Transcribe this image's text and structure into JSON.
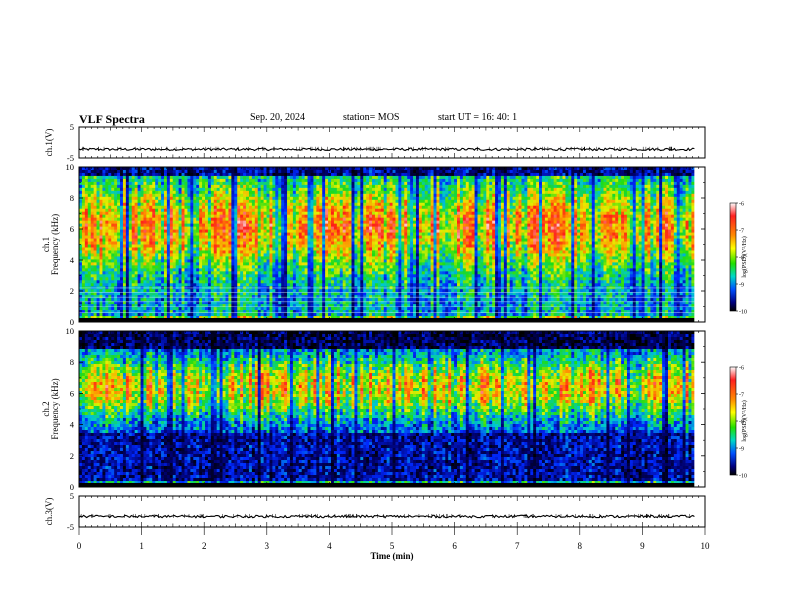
{
  "header": {
    "title": "VLF Spectra",
    "date": "Sep. 20, 2024",
    "station": "station= MOS",
    "start": "start  UT  =   16: 40: 1"
  },
  "chart_data": [
    {
      "type": "line",
      "name_panel": "ch1-waveform",
      "ylabel": "ch.1(V)",
      "ylim": [
        -5,
        5
      ],
      "yticks": [
        "5",
        "-5"
      ],
      "xlim": [
        0,
        10
      ],
      "level": -2.2
    },
    {
      "type": "heatmap",
      "name_panel": "ch1-spectrogram",
      "ylabel_top": "ch.1",
      "ylabel": "Frequency (kHz)",
      "ylim": [
        0,
        10
      ],
      "yticks": [
        "0",
        "2",
        "4",
        "6",
        "8",
        "10"
      ],
      "xlim": [
        0,
        9.83
      ],
      "colorbar": {
        "label": "log(PSD)(V²/Hz)",
        "range": [
          -10,
          -6
        ],
        "ticks": [
          "-6",
          "-7",
          "-8",
          "-9",
          "-10"
        ]
      }
    },
    {
      "type": "heatmap",
      "name_panel": "ch2-spectrogram",
      "ylabel_top": "ch.2",
      "ylabel": "Frequency (kHz)",
      "ylim": [
        0,
        10
      ],
      "yticks": [
        "0",
        "2",
        "4",
        "6",
        "8",
        "10"
      ],
      "xlim": [
        0,
        9.83
      ],
      "colorbar": {
        "label": "log(PSD)(V²/Hz)",
        "range": [
          -10,
          -6
        ],
        "ticks": [
          "-6",
          "-7",
          "-8",
          "-9",
          "-10"
        ]
      }
    },
    {
      "type": "line",
      "name_panel": "ch3-waveform",
      "ylabel": "ch.3(V)",
      "ylim": [
        -5,
        5
      ],
      "yticks": [
        "5",
        "-5"
      ],
      "xlim": [
        0,
        10
      ],
      "level": -1.6
    }
  ],
  "xaxis": {
    "label": "Time  (min)",
    "ticks": [
      "0",
      "1",
      "2",
      "3",
      "4",
      "5",
      "6",
      "7",
      "8",
      "9",
      "10"
    ]
  }
}
